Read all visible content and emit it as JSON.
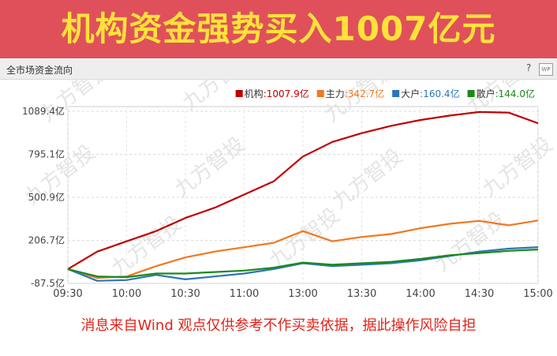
{
  "banner": {
    "title": "机构资金强势买入1007亿元"
  },
  "panel": {
    "title": "全市场资金流向",
    "help": "?",
    "wp": "WP"
  },
  "watermark": "九方智投",
  "disclaimer": "消息来自Wind 观点仅供参考不作买卖依据，据此操作风险自担",
  "chart_data": {
    "type": "line",
    "ylim": [
      -87.5,
      1089.4
    ],
    "yticks": [
      "1089.4亿",
      "795.1亿",
      "500.9亿",
      "206.7亿",
      "-87.5亿"
    ],
    "ytick_values": [
      1089.4,
      795.1,
      500.9,
      206.7,
      -87.5
    ],
    "xticks": [
      "09:30",
      "10:00",
      "10:30",
      "11:00",
      "13:00",
      "13:30",
      "14:00",
      "14:30",
      "15:00"
    ],
    "grid": true,
    "legend_position": "top-right",
    "legend": [
      {
        "key": "机构",
        "value": ":1007.9亿",
        "color": "#c00000"
      },
      {
        "key": "主力",
        "value": ":342.7亿",
        "color": "#f07820"
      },
      {
        "key": "大户",
        "value": ":160.4亿",
        "color": "#2e75b6"
      },
      {
        "key": "散户",
        "value": ":144.0亿",
        "color": "#1a8a1a"
      }
    ],
    "x": [
      "09:30",
      "09:45",
      "10:00",
      "10:15",
      "10:30",
      "10:45",
      "11:00",
      "11:15",
      "13:00",
      "13:15",
      "13:30",
      "13:45",
      "14:00",
      "14:15",
      "14:30",
      "14:45",
      "15:00"
    ],
    "series": [
      {
        "name": "机构",
        "color": "#c00000",
        "values": [
          10,
          130,
          200,
          270,
          360,
          430,
          520,
          610,
          780,
          880,
          940,
          990,
          1030,
          1060,
          1085,
          1080,
          1007.9
        ]
      },
      {
        "name": "主力",
        "color": "#f07820",
        "values": [
          10,
          -50,
          -40,
          30,
          90,
          130,
          160,
          190,
          270,
          200,
          230,
          250,
          290,
          320,
          340,
          310,
          342.7
        ]
      },
      {
        "name": "大户",
        "color": "#2e75b6",
        "values": [
          10,
          -70,
          -65,
          -30,
          -60,
          -40,
          -20,
          10,
          50,
          30,
          40,
          50,
          70,
          100,
          130,
          150,
          160.4
        ]
      },
      {
        "name": "散户",
        "color": "#1a8a1a",
        "values": [
          10,
          -40,
          -45,
          -20,
          -20,
          -10,
          0,
          20,
          55,
          40,
          50,
          60,
          80,
          105,
          120,
          135,
          144.0
        ]
      }
    ]
  }
}
